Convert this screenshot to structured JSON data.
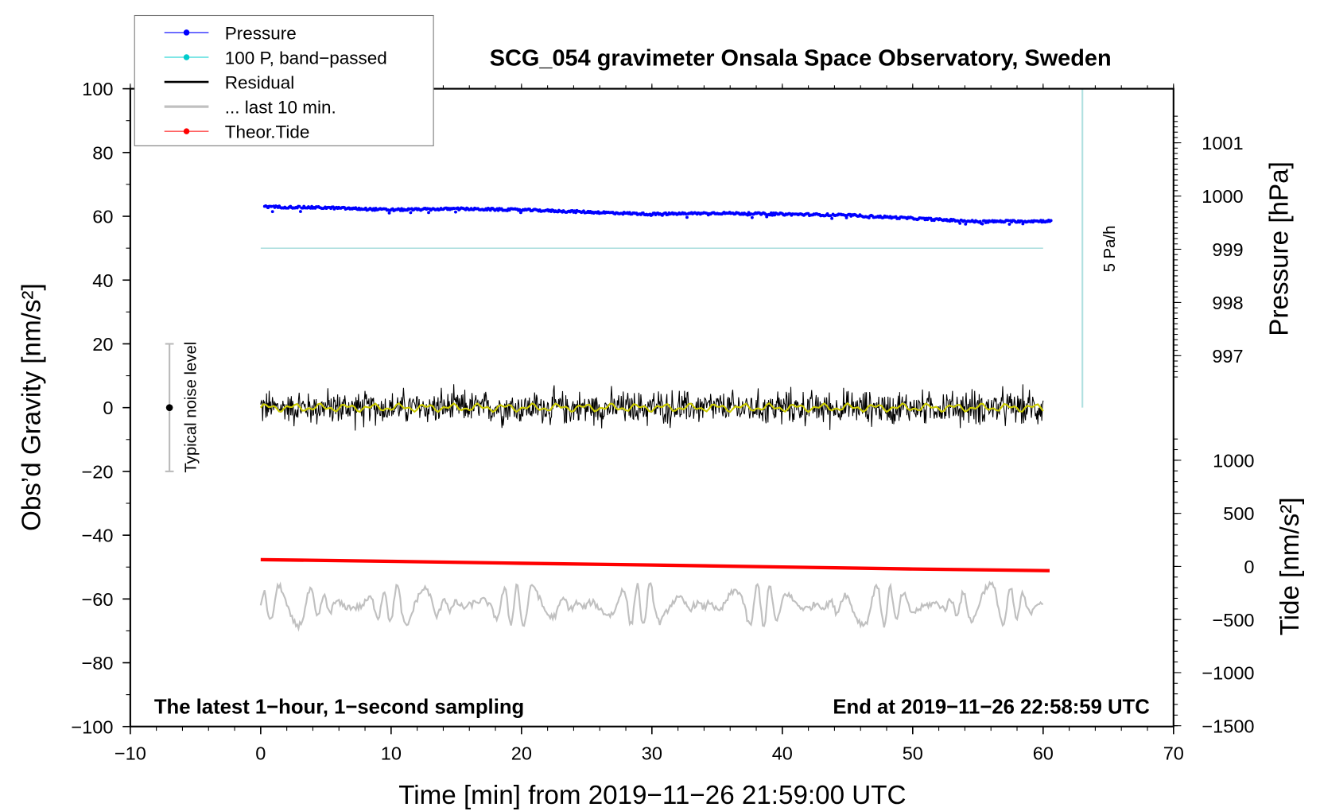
{
  "chart_data": {
    "type": "line",
    "title": "SCG_054 gravimeter Onsala Space Observatory, Sweden",
    "xlabel": "Time [min] from 2019−11−26 21:59:00 UTC",
    "ylabel_left": "Obs’d Gravity [nm/s²]",
    "ylabel_right_top": "Pressure [hPa]",
    "ylabel_right_bottom": "Tide [nm/s²]",
    "xlim": [
      -10,
      70
    ],
    "ylim": [
      -100,
      100
    ],
    "pressure_lim": [
      996,
      1002
    ],
    "tide_lim": [
      -1500,
      1500
    ],
    "x_ticks": [
      "−10",
      "0",
      "10",
      "20",
      "30",
      "40",
      "50",
      "60",
      "70"
    ],
    "y_ticks": [
      "100",
      "80",
      "60",
      "40",
      "20",
      "0",
      "−20",
      "−40",
      "−60",
      "−80",
      "−100"
    ],
    "pressure_ticks": [
      "1001",
      "1000",
      "999",
      "998",
      "997"
    ],
    "tide_ticks": [
      "1000",
      "500",
      "0",
      "−500",
      "−1000",
      "−1500"
    ],
    "legend": [
      "Pressure",
      "100 P, band−passed",
      "Residual",
      "... last 10 min.",
      "Theor.Tide"
    ],
    "legend_position": "top-left",
    "annotation_left": "The latest 1−hour, 1−second sampling",
    "annotation_right": "End at 2019−11−26 22:58:59 UTC",
    "scale_bar_label": "5 Pa/h",
    "noise_label": "Typical noise level",
    "noise_range": [
      -20,
      20
    ],
    "series": [
      {
        "name": "Pressure",
        "unit": "hPa",
        "x": [
          0,
          5,
          10,
          15,
          20,
          25,
          30,
          35,
          40,
          45,
          50,
          55,
          60
        ],
        "values": [
          999.8,
          999.78,
          999.74,
          999.76,
          999.74,
          999.7,
          999.66,
          999.68,
          999.66,
          999.64,
          999.58,
          999.52,
          999.53
        ]
      },
      {
        "name": "100 P, band-passed",
        "unit": "nm/s2",
        "x": [
          0,
          60
        ],
        "values": [
          50,
          50
        ]
      },
      {
        "name": "Residual",
        "unit": "nm/s2",
        "x": [
          0,
          60
        ],
        "values": [
          0,
          0
        ],
        "amplitude": 8
      },
      {
        "name": "... last 10 min.",
        "unit": "nm/s2",
        "x": [
          0,
          60
        ],
        "values": [
          -62,
          -62
        ],
        "amplitude": 8
      },
      {
        "name": "Theor.Tide",
        "unit": "nm/s2",
        "x": [
          0,
          10,
          20,
          30,
          40,
          50,
          60.5
        ],
        "values": [
          64,
          48,
          30,
          14,
          -6,
          -24,
          -40
        ]
      }
    ],
    "colors": {
      "pressure": "#0000ff",
      "bandpass": "#00cccc",
      "residual": "#000000",
      "last10": "#c0c0c0",
      "tide": "#ff0000",
      "smooth": "#cccc00",
      "scalebar": "#b0e0e0"
    }
  }
}
